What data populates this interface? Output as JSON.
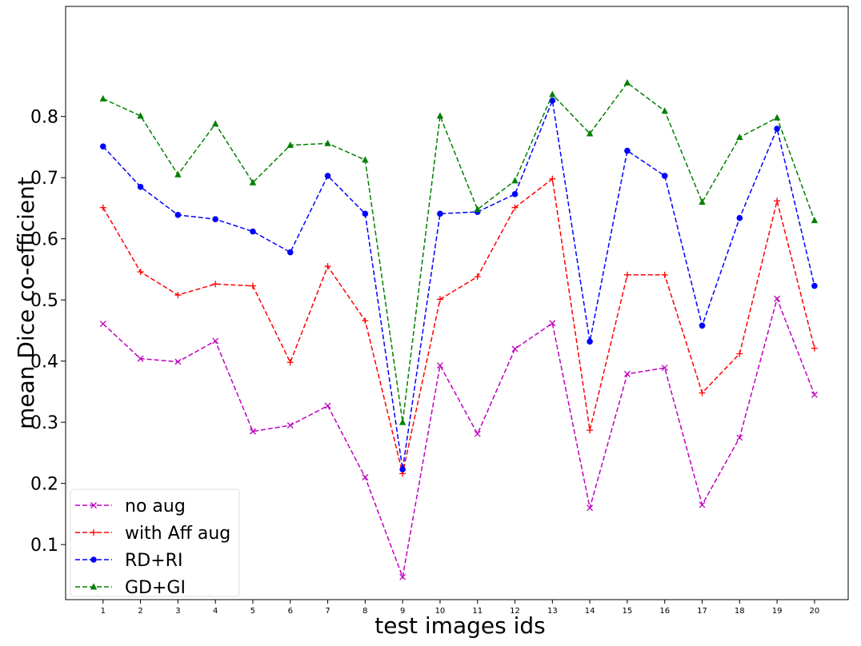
{
  "chart_data": {
    "type": "line",
    "title": "",
    "xlabel": "test images ids",
    "ylabel": "mean Dice co-efficient",
    "x": [
      1,
      2,
      3,
      4,
      5,
      6,
      7,
      8,
      9,
      10,
      11,
      12,
      13,
      14,
      15,
      16,
      17,
      18,
      19,
      20
    ],
    "xlim": [
      0.0,
      20.9
    ],
    "ylim": [
      0.01,
      0.98
    ],
    "yticks": [
      0.1,
      0.2,
      0.3,
      0.4,
      0.5,
      0.6,
      0.7,
      0.8
    ],
    "grid": false,
    "legend_position": "bottom-left",
    "series": [
      {
        "name": "no aug",
        "color": "#bf00bf",
        "marker": "x",
        "linestyle": "dashed",
        "values": [
          0.461,
          0.404,
          0.399,
          0.433,
          0.285,
          0.295,
          0.327,
          0.21,
          0.047,
          0.393,
          0.281,
          0.42,
          0.462,
          0.16,
          0.379,
          0.389,
          0.165,
          0.275,
          0.502,
          0.345
        ]
      },
      {
        "name": "with Aff aug",
        "color": "#ff0000",
        "marker": "plus",
        "linestyle": "dashed",
        "values": [
          0.651,
          0.546,
          0.508,
          0.526,
          0.523,
          0.398,
          0.555,
          0.466,
          0.216,
          0.501,
          0.538,
          0.651,
          0.698,
          0.287,
          0.541,
          0.541,
          0.348,
          0.412,
          0.662,
          0.421
        ]
      },
      {
        "name": "RD+RI",
        "color": "#0000ff",
        "marker": "circle",
        "linestyle": "dashed",
        "values": [
          0.751,
          0.685,
          0.639,
          0.632,
          0.612,
          0.578,
          0.703,
          0.641,
          0.223,
          0.641,
          0.644,
          0.673,
          0.826,
          0.432,
          0.744,
          0.703,
          0.458,
          0.634,
          0.78,
          0.523
        ]
      },
      {
        "name": "GD+GI",
        "color": "#008000",
        "marker": "triangle",
        "linestyle": "dashed",
        "values": [
          0.829,
          0.801,
          0.705,
          0.788,
          0.692,
          0.753,
          0.756,
          0.729,
          0.3,
          0.801,
          0.648,
          0.695,
          0.836,
          0.772,
          0.855,
          0.809,
          0.66,
          0.766,
          0.798,
          0.63
        ]
      }
    ]
  }
}
